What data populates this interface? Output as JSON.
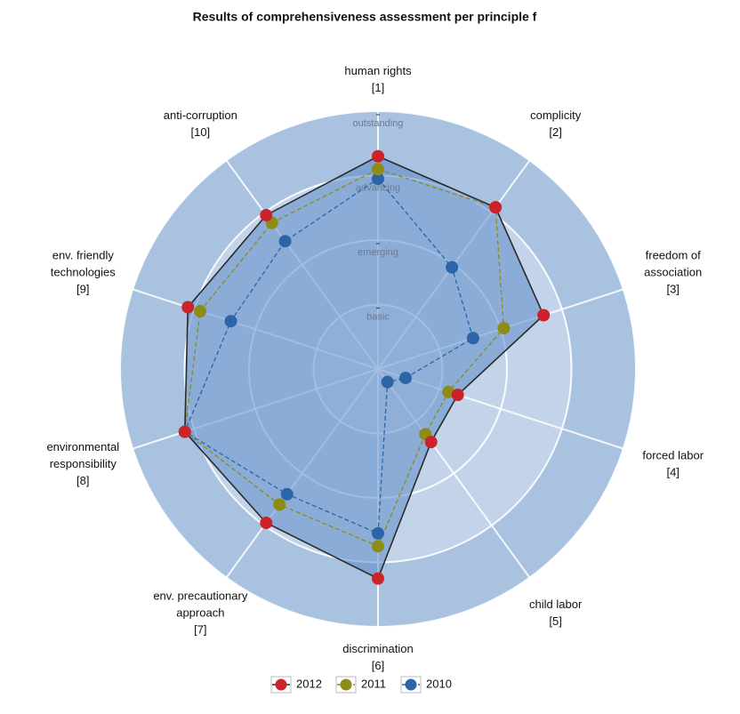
{
  "chart_data": {
    "type": "radar",
    "title": "Results of comprehensiveness assessment per principle f",
    "categories": [
      [
        "human rights",
        "[1]"
      ],
      [
        "complicity",
        "[2]"
      ],
      [
        "freedom of",
        "association",
        "[3]"
      ],
      [
        "forced labor",
        "[4]"
      ],
      [
        "child labor",
        "[5]"
      ],
      [
        "discrimination",
        "[6]"
      ],
      [
        "env. precautionary",
        "approach",
        "[7]"
      ],
      [
        "environmental",
        "responsibility",
        "[8]"
      ],
      [
        "env. friendly",
        "technologies",
        "[9]"
      ],
      [
        "anti-corruption",
        "[10]"
      ]
    ],
    "rlim": [
      0,
      4
    ],
    "rticks": [
      {
        "value": 1,
        "label": "basic"
      },
      {
        "value": 2,
        "label": "emerging"
      },
      {
        "value": 3,
        "label": "advancing"
      },
      {
        "value": 4,
        "label": "outstanding"
      }
    ],
    "series": [
      {
        "name": "2012",
        "color": "#cc2229",
        "line_color": "#2a2a2a",
        "dash": false,
        "fill": "#5b8bc7",
        "values": [
          3.3,
          3.1,
          2.7,
          1.3,
          1.4,
          3.25,
          2.95,
          3.15,
          3.1,
          2.95
        ]
      },
      {
        "name": "2011",
        "color": "#8c8c16",
        "line_color": "#8c8c16",
        "dash": true,
        "values": [
          3.1,
          3.1,
          2.05,
          1.15,
          1.25,
          2.75,
          2.6,
          3.15,
          2.9,
          2.8
        ]
      },
      {
        "name": "2010",
        "color": "#2b65a8",
        "line_color": "#2b65a8",
        "dash": true,
        "values": [
          2.95,
          1.95,
          1.55,
          0.45,
          0.25,
          2.55,
          2.4,
          3.15,
          2.4,
          2.45
        ]
      }
    ],
    "legend": "bottom"
  }
}
